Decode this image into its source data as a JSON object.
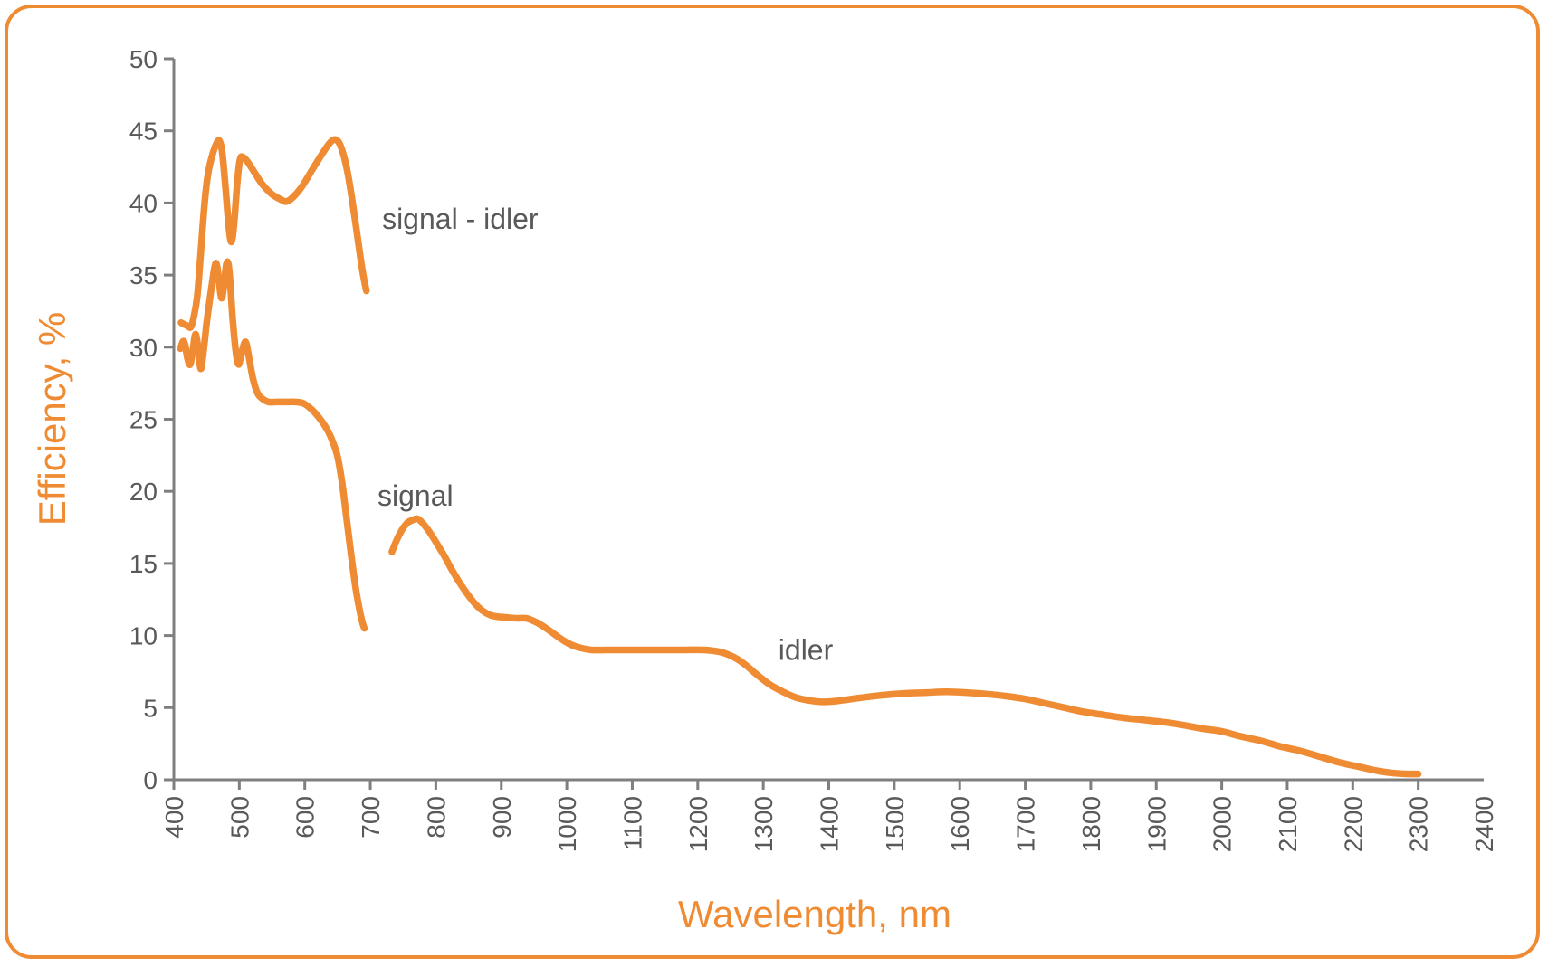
{
  "frame": {
    "border_color": "#EF8B33",
    "background": "#FFFFFF"
  },
  "chart_data": {
    "type": "line",
    "title": "",
    "xlabel": "Wavelength, nm",
    "ylabel": "Efficiency, %",
    "xlim": [
      400,
      2400
    ],
    "ylim": [
      0,
      50
    ],
    "grid": false,
    "legend_position": "inline-annotations",
    "colors": {
      "line": "#EF8B33",
      "axis": "#7F7F7F",
      "tick_label": "#595959",
      "annotation": "#58595B",
      "axis_title": "#EF8B33"
    },
    "x_tick_labels": [
      400,
      500,
      600,
      700,
      800,
      900,
      1000,
      1100,
      1200,
      1300,
      1400,
      1500,
      1600,
      1700,
      1800,
      1900,
      2000,
      2100,
      2200,
      2300,
      2400
    ],
    "x_tick_marks": [
      400,
      500,
      600,
      700,
      800,
      900,
      1000,
      1100,
      1200,
      1300,
      1400,
      1500,
      1600,
      1700,
      1800,
      1900,
      2000,
      2100,
      2200,
      2300
    ],
    "y_ticks": [
      0,
      5,
      10,
      15,
      20,
      25,
      30,
      35,
      40,
      45,
      50
    ],
    "series": [
      {
        "name": "signal - idler",
        "points": [
          [
            411,
            31.7
          ],
          [
            415,
            31.6
          ],
          [
            420,
            31.5
          ],
          [
            426,
            31.4
          ],
          [
            431,
            32.2
          ],
          [
            436,
            33.6
          ],
          [
            441,
            36.5
          ],
          [
            447,
            40.0
          ],
          [
            453,
            42.2
          ],
          [
            460,
            43.5
          ],
          [
            466,
            44.2
          ],
          [
            470,
            44.3
          ],
          [
            474,
            43.5
          ],
          [
            479,
            41.0
          ],
          [
            484,
            38.3
          ],
          [
            488,
            37.3
          ],
          [
            492,
            38.6
          ],
          [
            497,
            41.5
          ],
          [
            501,
            43.0
          ],
          [
            505,
            43.2
          ],
          [
            512,
            42.9
          ],
          [
            522,
            42.2
          ],
          [
            535,
            41.3
          ],
          [
            550,
            40.6
          ],
          [
            565,
            40.2
          ],
          [
            572,
            40.1
          ],
          [
            582,
            40.4
          ],
          [
            595,
            41.1
          ],
          [
            610,
            42.2
          ],
          [
            625,
            43.3
          ],
          [
            637,
            44.1
          ],
          [
            645,
            44.4
          ],
          [
            652,
            44.2
          ],
          [
            658,
            43.5
          ],
          [
            665,
            42.2
          ],
          [
            672,
            40.3
          ],
          [
            680,
            37.8
          ],
          [
            688,
            35.3
          ],
          [
            694,
            33.9
          ]
        ]
      },
      {
        "name": "signal",
        "points": [
          [
            410,
            29.9
          ],
          [
            414,
            30.4
          ],
          [
            417,
            30.2
          ],
          [
            421,
            29.2
          ],
          [
            425,
            28.8
          ],
          [
            429,
            29.8
          ],
          [
            433,
            30.9
          ],
          [
            437,
            30.0
          ],
          [
            441,
            28.5
          ],
          [
            445,
            29.6
          ],
          [
            451,
            32.0
          ],
          [
            458,
            34.3
          ],
          [
            463,
            35.7
          ],
          [
            466,
            35.6
          ],
          [
            470,
            34.2
          ],
          [
            473,
            33.4
          ],
          [
            476,
            34.1
          ],
          [
            480,
            35.7
          ],
          [
            483,
            35.8
          ],
          [
            486,
            34.6
          ],
          [
            490,
            31.9
          ],
          [
            495,
            29.6
          ],
          [
            499,
            28.8
          ],
          [
            503,
            29.5
          ],
          [
            508,
            30.3
          ],
          [
            511,
            30.2
          ],
          [
            516,
            29.0
          ],
          [
            521,
            27.8
          ],
          [
            528,
            26.8
          ],
          [
            536,
            26.4
          ],
          [
            545,
            26.2
          ],
          [
            558,
            26.2
          ],
          [
            572,
            26.2
          ],
          [
            586,
            26.2
          ],
          [
            598,
            26.1
          ],
          [
            610,
            25.7
          ],
          [
            622,
            25.1
          ],
          [
            634,
            24.3
          ],
          [
            643,
            23.4
          ],
          [
            650,
            22.4
          ],
          [
            657,
            20.6
          ],
          [
            663,
            18.4
          ],
          [
            670,
            15.9
          ],
          [
            677,
            13.5
          ],
          [
            683,
            11.9
          ],
          [
            688,
            10.9
          ],
          [
            691,
            10.5
          ]
        ]
      },
      {
        "name": "idler",
        "points": [
          [
            733,
            15.8
          ],
          [
            740,
            16.6
          ],
          [
            748,
            17.3
          ],
          [
            756,
            17.8
          ],
          [
            764,
            18.0
          ],
          [
            772,
            18.1
          ],
          [
            780,
            17.8
          ],
          [
            790,
            17.2
          ],
          [
            800,
            16.5
          ],
          [
            812,
            15.6
          ],
          [
            824,
            14.6
          ],
          [
            836,
            13.7
          ],
          [
            848,
            12.9
          ],
          [
            860,
            12.2
          ],
          [
            872,
            11.7
          ],
          [
            884,
            11.4
          ],
          [
            896,
            11.3
          ],
          [
            910,
            11.25
          ],
          [
            924,
            11.2
          ],
          [
            938,
            11.2
          ],
          [
            950,
            11.0
          ],
          [
            962,
            10.7
          ],
          [
            975,
            10.3
          ],
          [
            990,
            9.8
          ],
          [
            1005,
            9.4
          ],
          [
            1020,
            9.15
          ],
          [
            1038,
            9.0
          ],
          [
            1060,
            9.0
          ],
          [
            1090,
            9.0
          ],
          [
            1120,
            9.0
          ],
          [
            1150,
            9.0
          ],
          [
            1180,
            9.0
          ],
          [
            1210,
            9.0
          ],
          [
            1235,
            8.85
          ],
          [
            1255,
            8.5
          ],
          [
            1272,
            8.0
          ],
          [
            1290,
            7.3
          ],
          [
            1310,
            6.6
          ],
          [
            1330,
            6.1
          ],
          [
            1350,
            5.7
          ],
          [
            1370,
            5.5
          ],
          [
            1390,
            5.4
          ],
          [
            1410,
            5.45
          ],
          [
            1435,
            5.6
          ],
          [
            1460,
            5.75
          ],
          [
            1490,
            5.9
          ],
          [
            1520,
            6.0
          ],
          [
            1550,
            6.05
          ],
          [
            1580,
            6.1
          ],
          [
            1610,
            6.05
          ],
          [
            1640,
            5.95
          ],
          [
            1670,
            5.8
          ],
          [
            1700,
            5.6
          ],
          [
            1730,
            5.3
          ],
          [
            1760,
            5.0
          ],
          [
            1790,
            4.7
          ],
          [
            1820,
            4.5
          ],
          [
            1850,
            4.3
          ],
          [
            1880,
            4.15
          ],
          [
            1910,
            4.0
          ],
          [
            1940,
            3.8
          ],
          [
            1970,
            3.55
          ],
          [
            2000,
            3.35
          ],
          [
            2030,
            3.0
          ],
          [
            2060,
            2.7
          ],
          [
            2090,
            2.3
          ],
          [
            2120,
            2.0
          ],
          [
            2150,
            1.6
          ],
          [
            2180,
            1.2
          ],
          [
            2210,
            0.9
          ],
          [
            2240,
            0.6
          ],
          [
            2265,
            0.45
          ],
          [
            2285,
            0.4
          ],
          [
            2300,
            0.4
          ]
        ]
      }
    ],
    "annotations": [
      {
        "text": "signal - idler",
        "x_nm": 718,
        "y_pct": 38.9
      },
      {
        "text": "signal",
        "x_nm": 711,
        "y_pct": 19.7
      },
      {
        "text": "idler",
        "x_nm": 1323,
        "y_pct": 9.0
      }
    ]
  }
}
